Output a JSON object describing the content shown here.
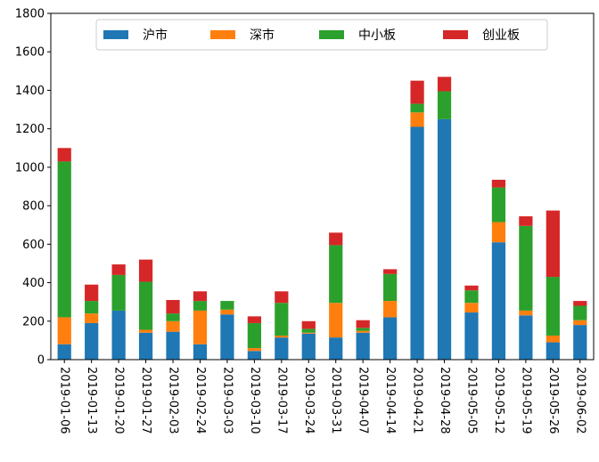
{
  "chart_data": {
    "type": "bar",
    "stacked": true,
    "categories": [
      "2019-01-06",
      "2019-01-13",
      "2019-01-20",
      "2019-01-27",
      "2019-02-03",
      "2019-02-24",
      "2019-03-03",
      "2019-03-10",
      "2019-03-17",
      "2019-03-24",
      "2019-03-31",
      "2019-04-07",
      "2019-04-14",
      "2019-04-21",
      "2019-04-28",
      "2019-05-05",
      "2019-05-12",
      "2019-05-19",
      "2019-05-26",
      "2019-06-02"
    ],
    "series": [
      {
        "name": "沪市",
        "color": "#1f77b4",
        "values": [
          80,
          190,
          255,
          140,
          145,
          80,
          235,
          45,
          115,
          135,
          115,
          140,
          220,
          1210,
          1250,
          245,
          610,
          230,
          90,
          180
        ]
      },
      {
        "name": "深市",
        "color": "#ff7f0e",
        "values": [
          140,
          50,
          0,
          15,
          55,
          175,
          25,
          15,
          10,
          5,
          180,
          10,
          85,
          75,
          0,
          50,
          105,
          25,
          35,
          25
        ]
      },
      {
        "name": "中小板",
        "color": "#2ca02c",
        "values": [
          810,
          65,
          185,
          250,
          40,
          50,
          45,
          130,
          170,
          20,
          300,
          15,
          140,
          45,
          145,
          65,
          180,
          440,
          305,
          75
        ]
      },
      {
        "name": "创业板",
        "color": "#d62728",
        "values": [
          70,
          85,
          55,
          115,
          70,
          50,
          0,
          35,
          60,
          40,
          65,
          40,
          25,
          120,
          75,
          25,
          40,
          50,
          345,
          25
        ]
      }
    ],
    "ylim": [
      0,
      1800
    ],
    "yticks": [
      "0",
      "200",
      "400",
      "600",
      "800",
      "1000",
      "1200",
      "1400",
      "1600",
      "1800"
    ],
    "legend_position": "top-center",
    "title": "",
    "xlabel": "",
    "ylabel": ""
  }
}
